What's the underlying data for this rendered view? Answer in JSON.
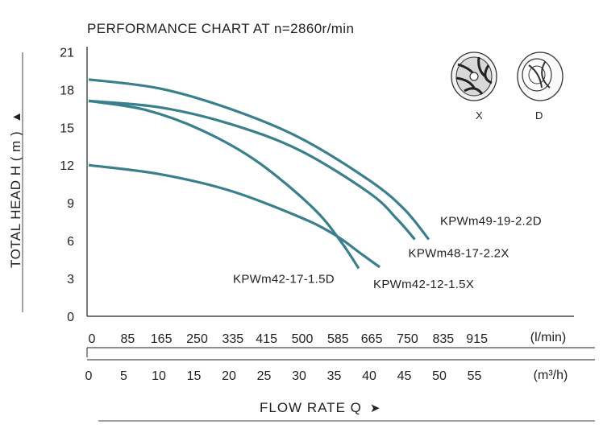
{
  "chart_data": {
    "type": "line",
    "title": "PERFORMANCE CHART AT  n=2860r/min",
    "ylabel": "TOTAL HEAD  H ( m )",
    "xlabel": "FLOW  RATE  Q",
    "ylim": [
      0,
      21
    ],
    "yticks": [
      "0",
      "3",
      "6",
      "9",
      "12",
      "15",
      "18",
      "21"
    ],
    "xlim_m3h": [
      0,
      70
    ],
    "x_unit_m3h": "(m³/h)",
    "x_ticks_m3h": [
      "0",
      "5",
      "10",
      "15",
      "20",
      "25",
      "30",
      "35",
      "40",
      "45",
      "50",
      "55"
    ],
    "x_unit_lmin": "(l/min)",
    "x_ticks_lmin": [
      "0",
      "85",
      "165",
      "250",
      "335",
      "415",
      "500",
      "585",
      "665",
      "750",
      "835",
      "915"
    ],
    "grid": false,
    "series": [
      {
        "name": "KPWm49-19-2.2D",
        "x": [
          0,
          10,
          20,
          30,
          40,
          45,
          48.5
        ],
        "y": [
          18.8,
          18.1,
          16.5,
          14.2,
          10.8,
          8.5,
          6.1
        ]
      },
      {
        "name": "KPWm48-17-2.2X",
        "x": [
          0,
          10,
          20,
          30,
          40,
          44,
          46.5
        ],
        "y": [
          17.1,
          16.6,
          15.3,
          13.2,
          9.8,
          7.7,
          6.1
        ]
      },
      {
        "name": "KPWm42-17-1.5D",
        "x": [
          0,
          8,
          16,
          24,
          32,
          36,
          38.5
        ],
        "y": [
          17.1,
          16.4,
          14.8,
          12.3,
          8.6,
          5.9,
          3.8
        ]
      },
      {
        "name": "KPWm42-12-1.5X",
        "x": [
          0,
          10,
          20,
          30,
          35,
          39,
          41.5
        ],
        "y": [
          12.0,
          11.3,
          10.0,
          7.9,
          6.5,
          4.9,
          3.9
        ]
      }
    ],
    "legend": {
      "icon_x_label": "X",
      "icon_d_label": "D"
    }
  }
}
